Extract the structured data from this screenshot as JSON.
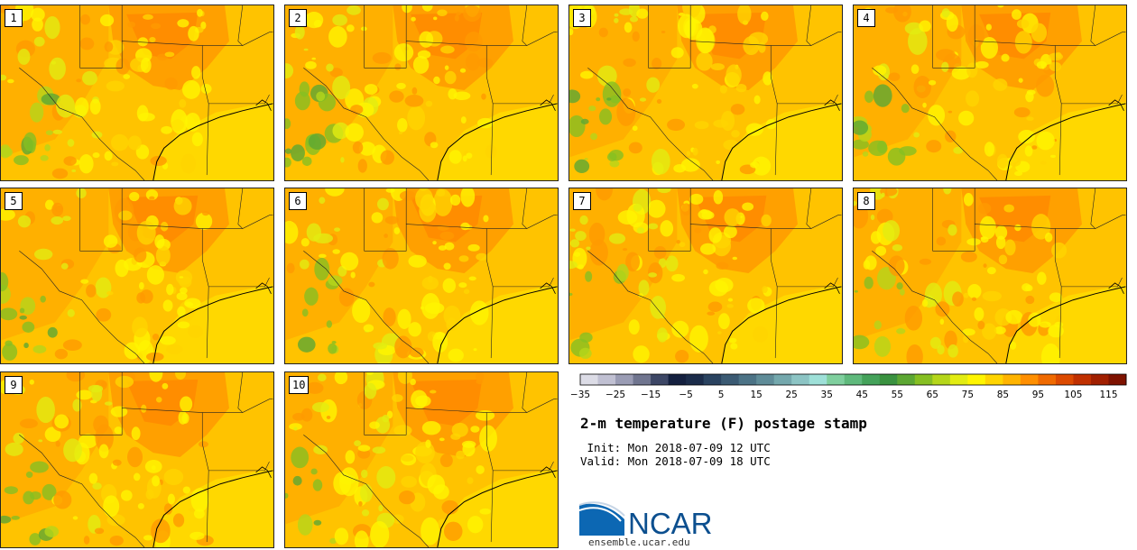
{
  "title": "2-m temperature (F) postage stamp",
  "init_text": " Init: Mon 2018-07-09 12 UTC",
  "valid_text": "Valid: Mon 2018-07-09 18 UTC",
  "logo_text": "NCAR",
  "url": "ensemble.ucar.edu",
  "members": [
    "1",
    "2",
    "3",
    "4",
    "5",
    "6",
    "7",
    "8",
    "9",
    "10"
  ],
  "colorbar": {
    "min": -35,
    "max": 120,
    "step": 5,
    "tick_labels": [
      "-35",
      "-25",
      "-15",
      "-5",
      "5",
      "15",
      "25",
      "35",
      "45",
      "55",
      "65",
      "75",
      "85",
      "95",
      "105",
      "115"
    ],
    "colors": [
      "#dcdce6",
      "#c0c0d2",
      "#9a9cb4",
      "#70758f",
      "#3d4766",
      "#14203f",
      "#1b2c4a",
      "#2a4360",
      "#3b5a73",
      "#4c7386",
      "#5f8c98",
      "#74a8ad",
      "#8cc4c4",
      "#9ee0d8",
      "#7fcf9e",
      "#5fb97c",
      "#44a25a",
      "#3a9240",
      "#5ca733",
      "#86bf22",
      "#b5d61a",
      "#e2ec12",
      "#fff500",
      "#ffd400",
      "#ffb400",
      "#ff8f00",
      "#f06a00",
      "#dc4a00",
      "#c03000",
      "#a11f00",
      "#7e1200"
    ]
  }
}
